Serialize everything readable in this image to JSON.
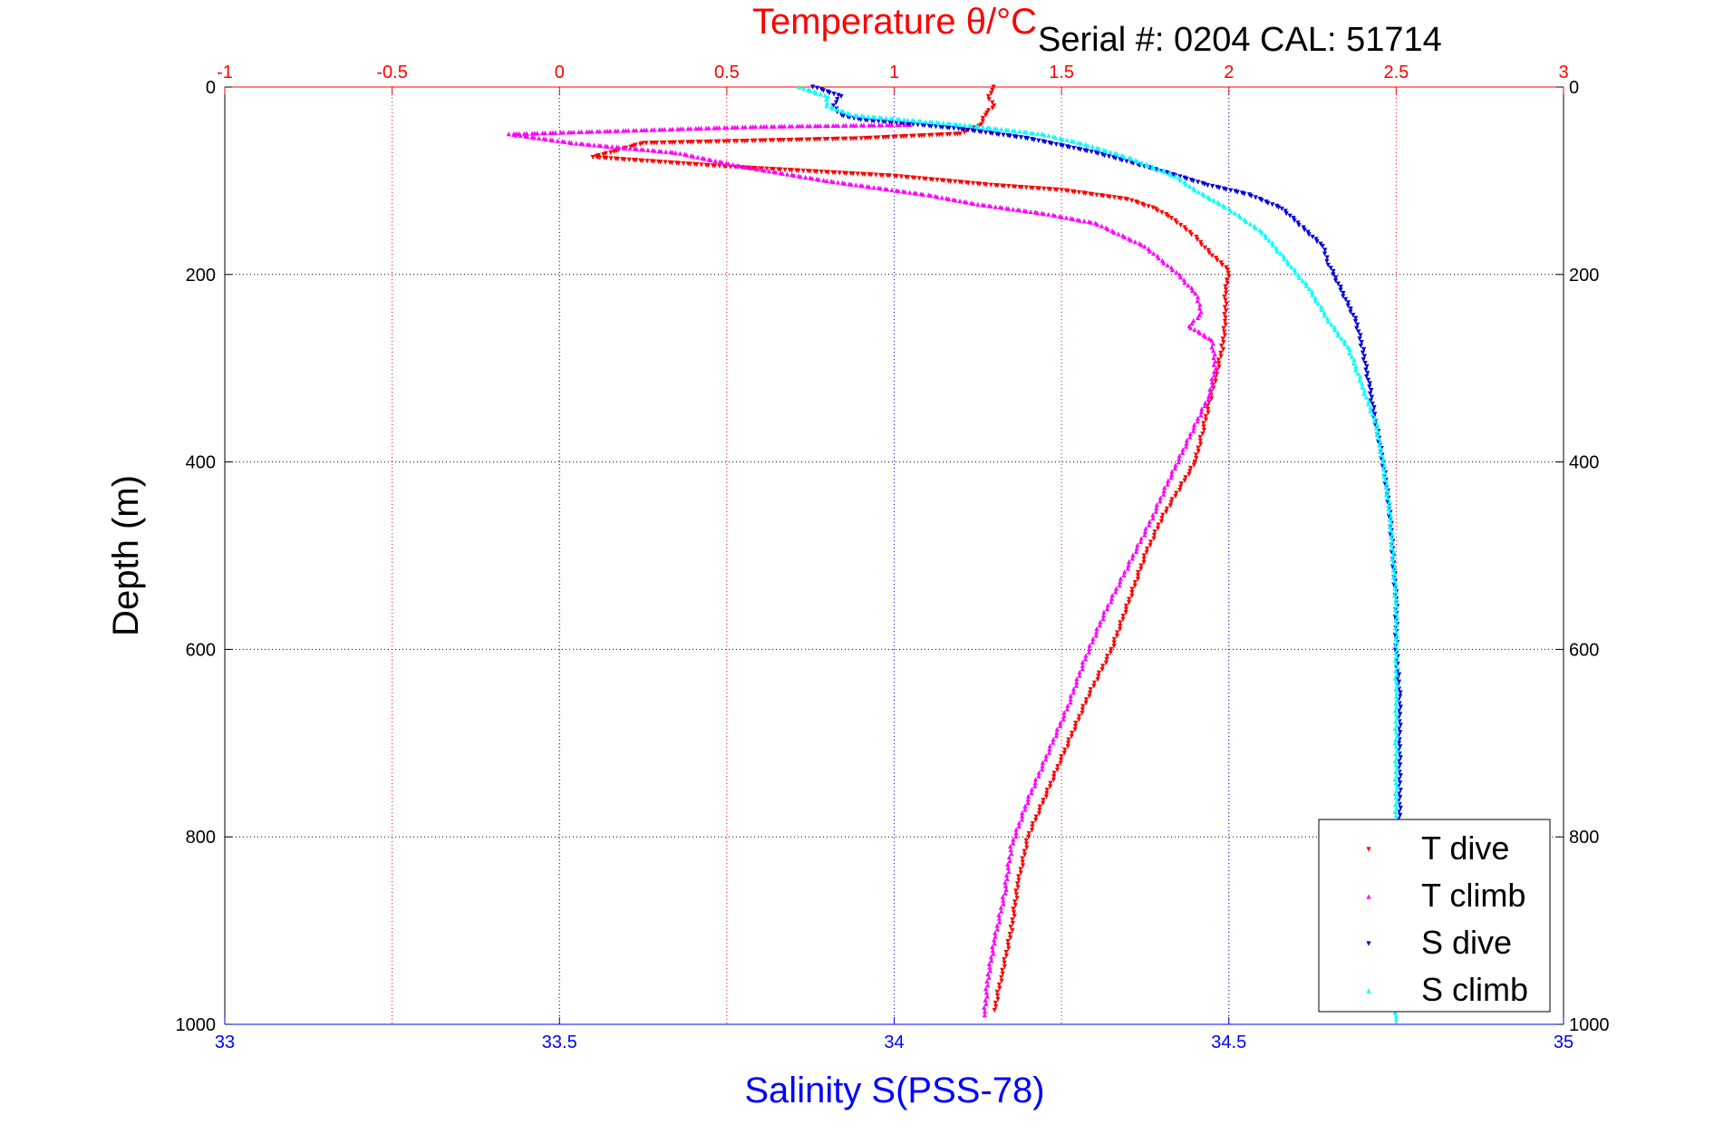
{
  "chart_data": {
    "type": "scatter",
    "title": "Temperature θ/°C",
    "annotation": "Serial #: 0204   CAL: 51714",
    "xlabel_bottom": "Salinity S(PSS-78)",
    "xlabel_top": "Temperature θ/°C",
    "ylabel": "Depth (m)",
    "xlim_bottom": [
      33,
      35
    ],
    "xlim_top": [
      -1,
      3
    ],
    "ylim": [
      0,
      1000
    ],
    "y_reversed": true,
    "grid": true,
    "legend_position": "bottom-right",
    "bottom_ticks": [
      "33",
      "33.5",
      "34",
      "34.5",
      "35"
    ],
    "top_ticks": [
      "-1",
      "-0.5",
      "0",
      "0.5",
      "1",
      "1.5",
      "2",
      "2.5",
      "3"
    ],
    "y_ticks": [
      "0",
      "200",
      "400",
      "600",
      "800",
      "1000"
    ],
    "y_tick_values": [
      0,
      200,
      400,
      600,
      800,
      1000
    ],
    "bottom_tick_values": [
      33,
      33.5,
      34,
      34.5,
      35
    ],
    "top_tick_values": [
      -1,
      -0.5,
      0,
      0.5,
      1,
      1.5,
      2,
      2.5,
      3
    ],
    "colors": {
      "temperature_axis": "#ff0000",
      "salinity_axis": "#0000ff",
      "t_dive": "#ff0000",
      "t_climb": "#ff00ff",
      "s_dive": "#0000dd",
      "s_climb": "#00ffff"
    },
    "series": [
      {
        "name": "T dive",
        "axis": "top",
        "color": "#ff0000",
        "marker": "triangle-down",
        "points": [
          [
            1.3,
            0
          ],
          [
            1.28,
            10
          ],
          [
            1.3,
            20
          ],
          [
            1.27,
            30
          ],
          [
            1.26,
            40
          ],
          [
            1.2,
            50
          ],
          [
            0.9,
            55
          ],
          [
            0.25,
            60
          ],
          [
            0.15,
            70
          ],
          [
            0.1,
            75
          ],
          [
            0.5,
            85
          ],
          [
            1.0,
            95
          ],
          [
            1.15,
            100
          ],
          [
            1.3,
            105
          ],
          [
            1.5,
            110
          ],
          [
            1.7,
            120
          ],
          [
            1.78,
            130
          ],
          [
            1.83,
            140
          ],
          [
            1.9,
            160
          ],
          [
            1.95,
            180
          ],
          [
            2.0,
            195
          ],
          [
            1.99,
            220
          ],
          [
            1.99,
            250
          ],
          [
            1.98,
            280
          ],
          [
            1.96,
            310
          ],
          [
            1.94,
            340
          ],
          [
            1.92,
            370
          ],
          [
            1.9,
            400
          ],
          [
            1.85,
            430
          ],
          [
            1.8,
            460
          ],
          [
            1.75,
            500
          ],
          [
            1.7,
            550
          ],
          [
            1.65,
            600
          ],
          [
            1.58,
            650
          ],
          [
            1.52,
            700
          ],
          [
            1.46,
            750
          ],
          [
            1.4,
            800
          ],
          [
            1.37,
            850
          ],
          [
            1.35,
            900
          ],
          [
            1.32,
            950
          ],
          [
            1.3,
            985
          ]
        ]
      },
      {
        "name": "T climb",
        "axis": "top",
        "color": "#ff00ff",
        "marker": "triangle-up",
        "points": [
          [
            1.05,
            40
          ],
          [
            0.6,
            42
          ],
          [
            -0.15,
            50
          ],
          [
            -0.05,
            55
          ],
          [
            0.05,
            60
          ],
          [
            0.35,
            70
          ],
          [
            0.55,
            85
          ],
          [
            0.8,
            100
          ],
          [
            1.1,
            115
          ],
          [
            1.25,
            125
          ],
          [
            1.45,
            135
          ],
          [
            1.6,
            145
          ],
          [
            1.75,
            170
          ],
          [
            1.85,
            200
          ],
          [
            1.9,
            220
          ],
          [
            1.92,
            240
          ],
          [
            1.88,
            255
          ],
          [
            1.95,
            270
          ],
          [
            1.96,
            300
          ],
          [
            1.94,
            330
          ],
          [
            1.9,
            360
          ],
          [
            1.86,
            390
          ],
          [
            1.82,
            420
          ],
          [
            1.77,
            460
          ],
          [
            1.7,
            510
          ],
          [
            1.63,
            560
          ],
          [
            1.57,
            610
          ],
          [
            1.52,
            660
          ],
          [
            1.46,
            710
          ],
          [
            1.4,
            760
          ],
          [
            1.35,
            810
          ],
          [
            1.33,
            860
          ],
          [
            1.3,
            910
          ],
          [
            1.28,
            950
          ],
          [
            1.27,
            990
          ]
        ]
      },
      {
        "name": "S dive",
        "axis": "bottom",
        "color": "#0000dd",
        "marker": "triangle-down",
        "points": [
          [
            33.88,
            0
          ],
          [
            33.92,
            10
          ],
          [
            33.91,
            20
          ],
          [
            33.92,
            30
          ],
          [
            33.95,
            35
          ],
          [
            34.03,
            40
          ],
          [
            34.1,
            45
          ],
          [
            34.2,
            55
          ],
          [
            34.3,
            70
          ],
          [
            34.4,
            90
          ],
          [
            34.47,
            105
          ],
          [
            34.53,
            115
          ],
          [
            34.58,
            130
          ],
          [
            34.61,
            150
          ],
          [
            34.64,
            170
          ],
          [
            34.65,
            190
          ],
          [
            34.67,
            220
          ],
          [
            34.69,
            250
          ],
          [
            34.7,
            280
          ],
          [
            34.71,
            320
          ],
          [
            34.72,
            360
          ],
          [
            34.73,
            400
          ],
          [
            34.74,
            450
          ],
          [
            34.745,
            500
          ],
          [
            34.75,
            550
          ],
          [
            34.75,
            600
          ],
          [
            34.755,
            650
          ],
          [
            34.755,
            700
          ],
          [
            34.755,
            750
          ],
          [
            34.755,
            800
          ]
        ]
      },
      {
        "name": "S climb",
        "axis": "bottom",
        "color": "#00ffff",
        "marker": "triangle-up",
        "points": [
          [
            33.86,
            0
          ],
          [
            33.9,
            10
          ],
          [
            33.9,
            20
          ],
          [
            33.94,
            30
          ],
          [
            34.02,
            35
          ],
          [
            34.1,
            40
          ],
          [
            34.22,
            50
          ],
          [
            34.28,
            60
          ],
          [
            34.35,
            75
          ],
          [
            34.42,
            95
          ],
          [
            34.45,
            110
          ],
          [
            34.5,
            130
          ],
          [
            34.55,
            155
          ],
          [
            34.58,
            180
          ],
          [
            34.62,
            215
          ],
          [
            34.65,
            250
          ],
          [
            34.68,
            280
          ],
          [
            34.7,
            320
          ],
          [
            34.72,
            360
          ],
          [
            34.73,
            400
          ],
          [
            34.74,
            450
          ],
          [
            34.745,
            500
          ],
          [
            34.75,
            550
          ],
          [
            34.75,
            600
          ],
          [
            34.75,
            650
          ],
          [
            34.75,
            700
          ],
          [
            34.75,
            750
          ],
          [
            34.75,
            800
          ],
          [
            34.75,
            850
          ],
          [
            34.75,
            900
          ],
          [
            34.75,
            950
          ],
          [
            34.75,
            995
          ]
        ]
      }
    ]
  }
}
